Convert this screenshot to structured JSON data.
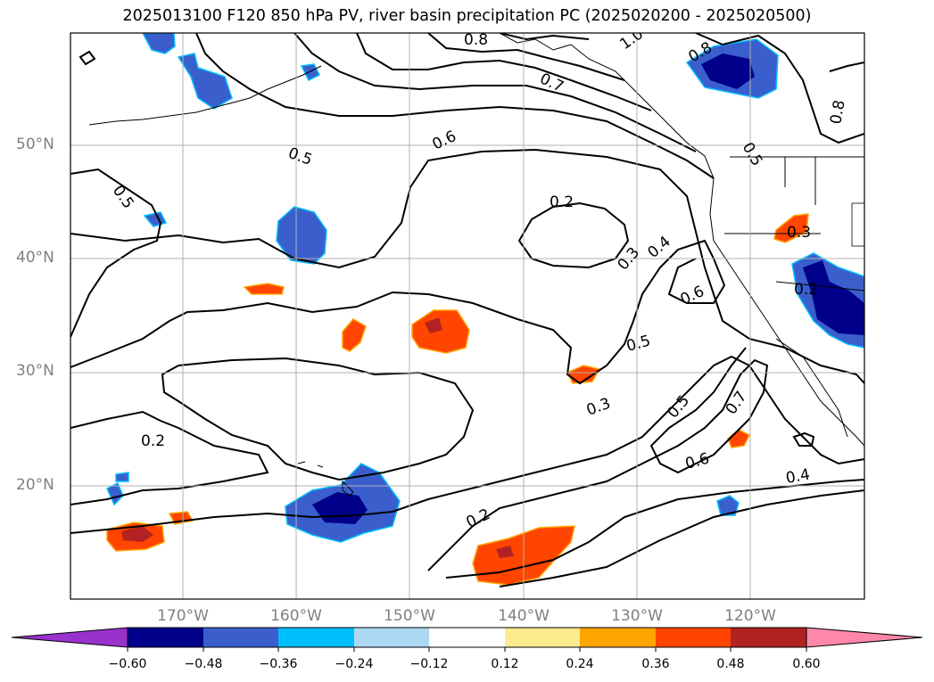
{
  "title": "2025013100 F120 850 hPa PV, river basin precipitation PC (2025020200 - 2025020500)",
  "latitude_labels": [
    "50°N",
    "40°N",
    "30°N",
    "20°N"
  ],
  "longitude_labels": [
    "170°W",
    "160°W",
    "150°W",
    "140°W",
    "130°W",
    "120°W"
  ],
  "contour_labels": [
    "0.8",
    "1.0",
    "0.8",
    "0.7",
    "0.6",
    "0.5",
    "0.5",
    "0.2",
    "0.3",
    "0.4",
    "0.6",
    "0.5",
    "0.3",
    "0.5",
    "0.7",
    "0.6",
    "0.4",
    "0.2",
    "0.2",
    "0.3",
    "0.2",
    "0.8",
    "0.5"
  ],
  "colorbar": {
    "tick_labels": [
      "−0.60",
      "−0.48",
      "−0.36",
      "−0.24",
      "−0.12",
      "0.12",
      "0.24",
      "0.36",
      "0.48",
      "0.60"
    ],
    "colors": [
      "#9932cc",
      "#00008b",
      "#3a5fcd",
      "#00bfff",
      "#add8f2",
      "#ffffff",
      "#ffeb8f",
      "#ffa500",
      "#ff4500",
      "#b22222",
      "#ff88aa"
    ]
  },
  "colors": {
    "negative_strong": "#00008b",
    "negative": "#3a5fcd",
    "negative_weak": "#00bfff",
    "positive": "#ff4500",
    "positive_strong": "#b22222",
    "positive_weak": "#ffa500",
    "positive_faint": "#ffeb8f",
    "gridline": "#b0b0b0",
    "contour": "#000000"
  }
}
